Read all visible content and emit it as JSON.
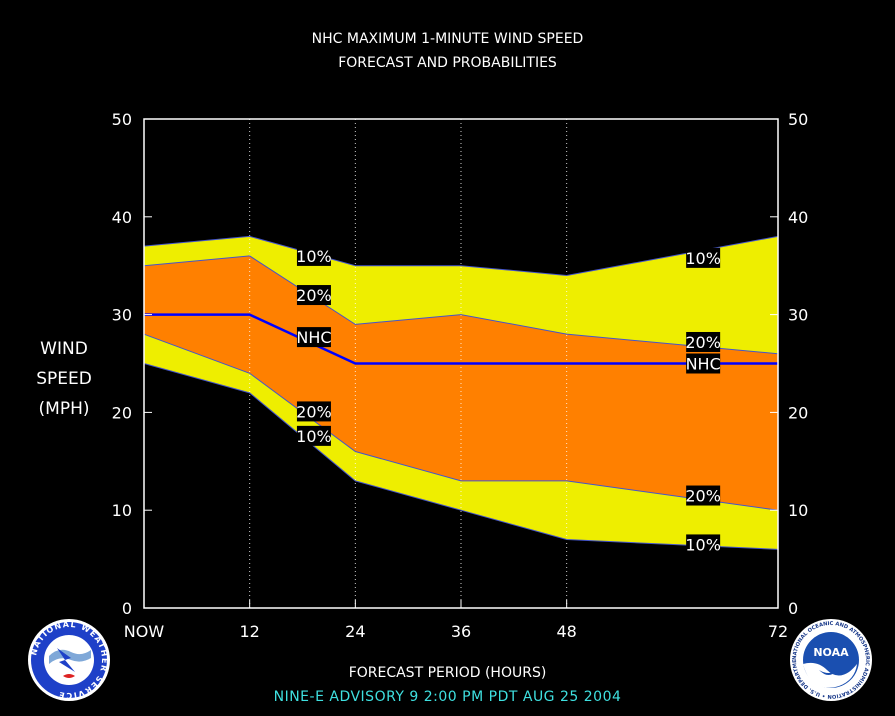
{
  "chart_data": {
    "type": "area",
    "title": "NHC MAXIMUM 1-MINUTE WIND SPEED",
    "subtitle": "FORECAST AND PROBABILITIES",
    "ylabel": [
      "WIND",
      "SPEED",
      "(MPH)"
    ],
    "xlabel": "FORECAST PERIOD (HOURS)",
    "ylim": [
      0,
      50
    ],
    "xlim": [
      0,
      72
    ],
    "yticks": [
      0,
      10,
      20,
      30,
      40,
      50
    ],
    "xticks": [
      {
        "x": 0,
        "label": "NOW"
      },
      {
        "x": 12,
        "label": "12"
      },
      {
        "x": 24,
        "label": "24"
      },
      {
        "x": 36,
        "label": "36"
      },
      {
        "x": 48,
        "label": "48"
      },
      {
        "x": 72,
        "label": "72"
      }
    ],
    "x": [
      0,
      12,
      24,
      36,
      48,
      72
    ],
    "series": [
      {
        "name": "10%",
        "values": [
          37,
          38,
          35,
          35,
          34,
          38
        ]
      },
      {
        "name": "20%",
        "values": [
          35,
          36,
          29,
          30,
          28,
          26
        ]
      },
      {
        "name": "NHC",
        "values": [
          30,
          30,
          25,
          25,
          25,
          25
        ]
      },
      {
        "name": "20%",
        "values": [
          28,
          24,
          16,
          13,
          13,
          10
        ]
      },
      {
        "name": "10%",
        "values": [
          25,
          22,
          13,
          10,
          7,
          6
        ]
      }
    ],
    "series_labels": [
      {
        "text": "10%",
        "x": 19.3,
        "y": 36
      },
      {
        "text": "20%",
        "x": 19.3,
        "y": 32
      },
      {
        "text": "NHC",
        "x": 19.3,
        "y": 27.7
      },
      {
        "text": "20%",
        "x": 19.3,
        "y": 20.1
      },
      {
        "text": "10%",
        "x": 19.3,
        "y": 17.6
      },
      {
        "text": "10%",
        "x": 63.5,
        "y": 35.8
      },
      {
        "text": "20%",
        "x": 63.5,
        "y": 27.2
      },
      {
        "text": "NHC",
        "x": 63.5,
        "y": 25
      },
      {
        "text": "20%",
        "x": 63.5,
        "y": 11.5
      },
      {
        "text": "10%",
        "x": 63.5,
        "y": 6.5
      }
    ],
    "colors": {
      "outer_band": "#eeee00",
      "inner_band": "#ff8000",
      "nhc_line": "#0000ff",
      "background": "#000000",
      "axis": "#ffffff",
      "footer": "#3fe0e0"
    },
    "grid": "vertical dotted at tick hours"
  },
  "footer": "NINE-E   ADVISORY  9  2:00  PM  PDT  AUG  25  2004",
  "logos": {
    "left": "National Weather Service logo",
    "right": "NOAA logo",
    "left_text": "NATIONAL WEATHER SERVICE",
    "right_text": "NOAA",
    "right_ring_text": "NATIONAL OCEANIC AND ATMOSPHERIC ADMINISTRATION • U.S. DEPARTMENT OF COMMERCE"
  }
}
